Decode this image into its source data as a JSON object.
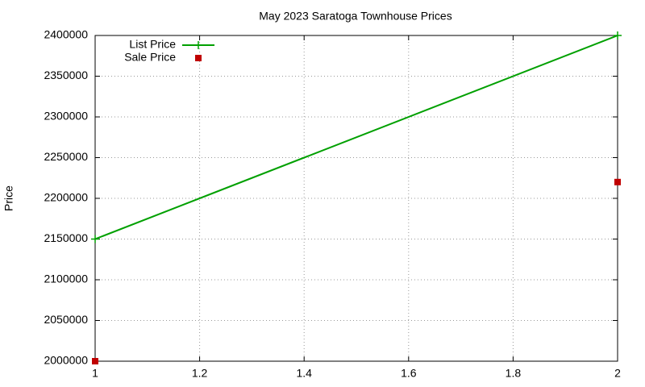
{
  "chart_data": {
    "type": "line",
    "title": "May 2023 Saratoga Townhouse Prices",
    "y_label": "Price",
    "x": [
      1,
      2
    ],
    "series": [
      {
        "name": "List Price",
        "color": "#00a000",
        "style": "linespoints",
        "values": [
          2150000,
          2400000
        ]
      },
      {
        "name": "Sale Price",
        "color": "#c00000",
        "style": "points",
        "values": [
          2000000,
          2220000
        ]
      }
    ],
    "xlim": [
      1,
      2
    ],
    "xticks": [
      1,
      1.2,
      1.4,
      1.6,
      1.8,
      2
    ],
    "ylim": [
      2000000,
      2400000
    ],
    "yticks": [
      2000000,
      2050000,
      2100000,
      2150000,
      2200000,
      2250000,
      2300000,
      2350000,
      2400000
    ],
    "grid": true,
    "legend": "top-left"
  }
}
